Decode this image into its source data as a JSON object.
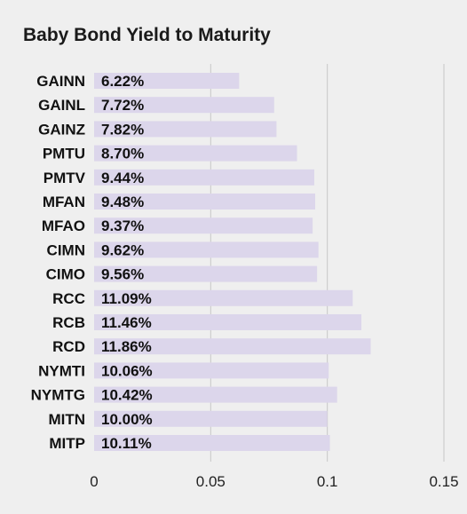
{
  "chart_data": {
    "type": "bar",
    "orientation": "horizontal",
    "title": "Baby Bond Yield to Maturity",
    "xlabel": "",
    "ylabel": "",
    "categories": [
      "GAINN",
      "GAINL",
      "GAINZ",
      "PMTU",
      "PMTV",
      "MFAN",
      "MFAO",
      "CIMN",
      "CIMO",
      "RCC",
      "RCB",
      "RCD",
      "NYMTI",
      "NYMTG",
      "MITN",
      "MITP"
    ],
    "values": [
      0.0622,
      0.0772,
      0.0782,
      0.087,
      0.0944,
      0.0948,
      0.0937,
      0.0962,
      0.0956,
      0.1109,
      0.1146,
      0.1186,
      0.1006,
      0.1042,
      0.1,
      0.1011
    ],
    "value_labels": [
      "6.22%",
      "7.72%",
      "7.82%",
      "8.70%",
      "9.44%",
      "9.48%",
      "9.37%",
      "9.62%",
      "9.56%",
      "11.09%",
      "11.46%",
      "11.86%",
      "10.06%",
      "10.42%",
      "10.00%",
      "10.11%"
    ],
    "xlim": [
      0,
      0.15
    ],
    "x_ticks": [
      0,
      0.05,
      0.1,
      0.15
    ],
    "x_tick_labels": [
      "0",
      "0.05",
      "0.1",
      "0.15"
    ],
    "grid": true,
    "bar_color": "#dcd6eb",
    "grid_color": "#c7c7c7",
    "background": "#efefef"
  }
}
